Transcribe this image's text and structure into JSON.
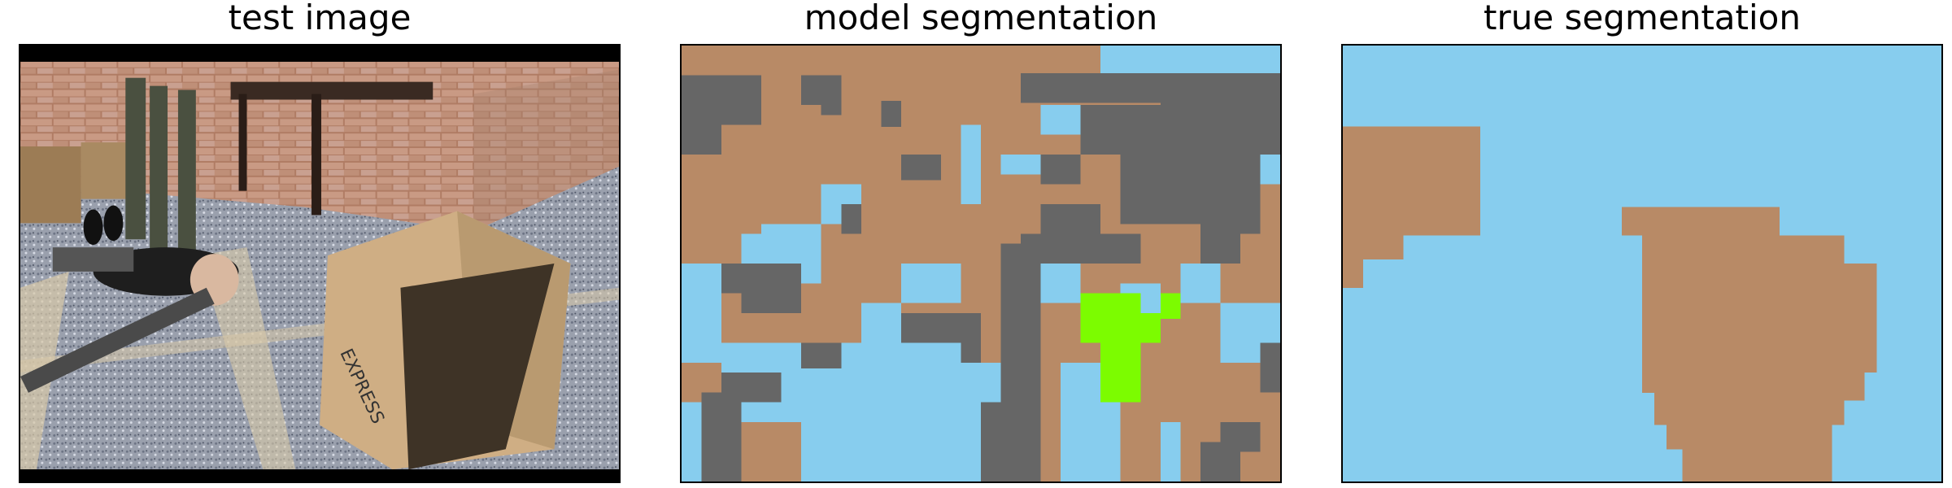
{
  "panels": [
    {
      "title": "test image"
    },
    {
      "title": "model segmentation"
    },
    {
      "title": "true segmentation"
    }
  ],
  "photo": {
    "box_label": "EXPRESS"
  },
  "legend_colors": {
    "tan": "#B88A66",
    "sky": "#87CDEE",
    "gray": "#666666",
    "green": "#7CFC00"
  }
}
